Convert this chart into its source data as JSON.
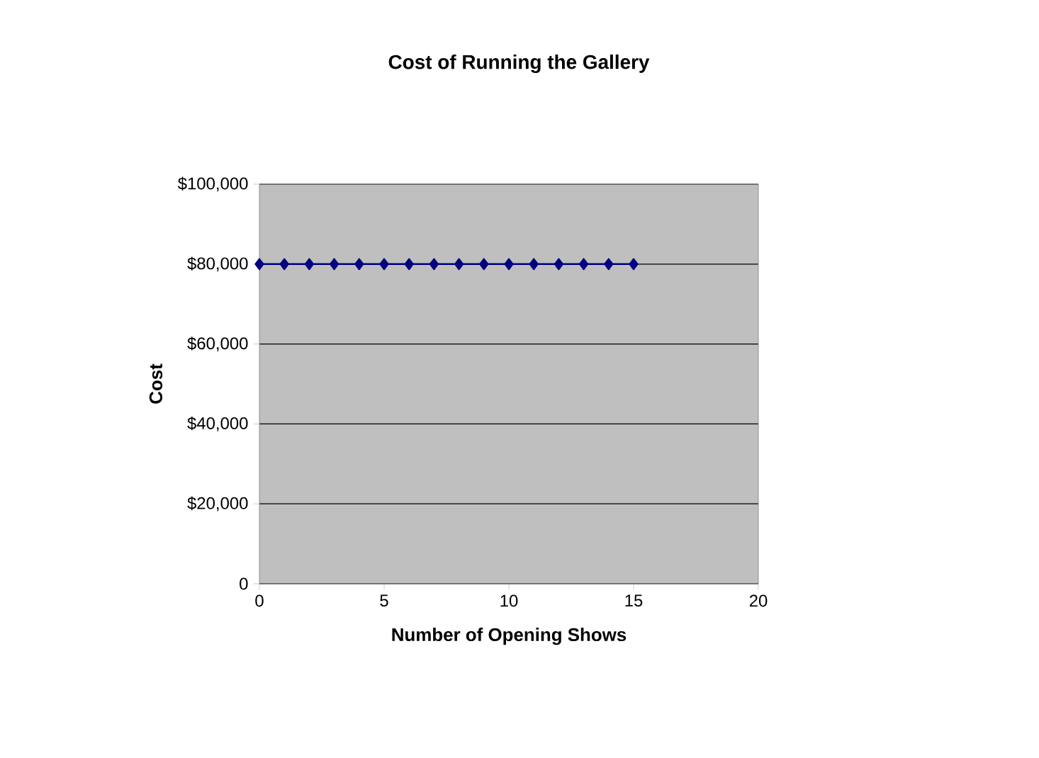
{
  "chart_data": {
    "type": "line",
    "title": "Cost of Running the Gallery",
    "xlabel": "Number of Opening Shows",
    "ylabel": "Cost",
    "x": [
      0,
      1,
      2,
      3,
      4,
      5,
      6,
      7,
      8,
      9,
      10,
      11,
      12,
      13,
      14,
      15
    ],
    "series": [
      {
        "color": "#000080",
        "values": [
          80000,
          80000,
          80000,
          80000,
          80000,
          80000,
          80000,
          80000,
          80000,
          80000,
          80000,
          80000,
          80000,
          80000,
          80000,
          80000
        ]
      }
    ],
    "xlim": [
      0,
      20
    ],
    "xticks": [
      0,
      5,
      10,
      15,
      20
    ],
    "ylim": [
      0,
      100000
    ],
    "yticks": [
      0,
      {
        "value": 20000,
        "label": "$20,000"
      },
      {
        "value": 40000,
        "label": "$40,000"
      },
      {
        "value": 60000,
        "label": "$60,000"
      },
      {
        "value": 80000,
        "label": "$80,000"
      },
      {
        "value": 100000,
        "label": "$100,000"
      }
    ],
    "grid": "y",
    "marker": "diamond",
    "line_style": "solid"
  }
}
